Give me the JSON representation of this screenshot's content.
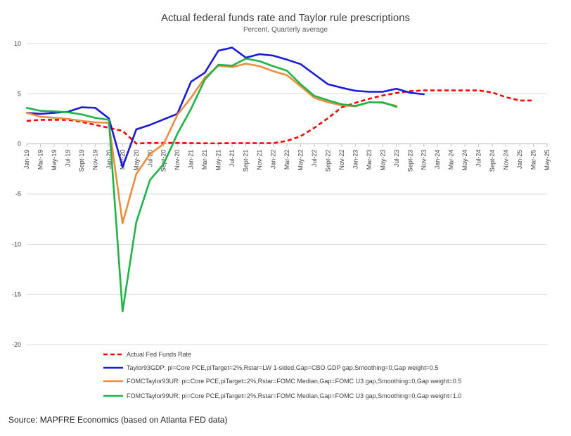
{
  "colors": {
    "actual": "#ff0000",
    "taylor93gdp": "#1a1ad9",
    "fomc_taylor93ur": "#f08c3c",
    "fomc_taylor99ur": "#1eb446",
    "grid": "#d9d9d9",
    "axis": "#bfbfbf"
  },
  "source": "Source: MAPFRE Economics (based on Atlanta FED data)",
  "chart_data": {
    "type": "line",
    "title": "Actual federal funds rate and Taylor rule prescriptions",
    "subtitle": "Percent, Quarterly average",
    "ylim": [
      -20,
      10
    ],
    "yticks": [
      "10",
      "5",
      "0",
      "-5",
      "-10",
      "-15",
      "-20"
    ],
    "ytick_values": [
      10,
      5,
      0,
      -5,
      -10,
      -15,
      -20
    ],
    "grid": true,
    "legend_position": "bottom",
    "x": [
      "Jan-19",
      "Mar-19",
      "May-19",
      "Jul-19",
      "Sept-19",
      "Nov-19",
      "Jan-20",
      "Mar-20",
      "May-20",
      "Jul-20",
      "Sept-20",
      "Nov-20",
      "Jan-21",
      "Mar-21",
      "May-21",
      "Jul-21",
      "Sept-21",
      "Nov-21",
      "Jan-22",
      "Mar-22",
      "May-22",
      "Jul-22",
      "Sept-22",
      "Nov-22",
      "Jan-23",
      "Mar-23",
      "May-23",
      "Jul-23",
      "Sept-23",
      "Nov-23",
      "Jan-24",
      "Mar-24",
      "May-24",
      "Jul-24",
      "Sept-24",
      "Nov-24",
      "Jan-25",
      "Mar-25",
      "May-25"
    ],
    "series": [
      {
        "key": "actual",
        "name": "Actual Fed Funds Rate",
        "style": "dashed",
        "points": [
          [
            0,
            2.3
          ],
          [
            1,
            2.4
          ],
          [
            2,
            2.4
          ],
          [
            3,
            2.4
          ],
          [
            4,
            2.2
          ],
          [
            5,
            1.9
          ],
          [
            6,
            1.6
          ],
          [
            7,
            1.3
          ],
          [
            8,
            0.05
          ],
          [
            9,
            0.1
          ],
          [
            10,
            0.1
          ],
          [
            11,
            0.1
          ],
          [
            12,
            0.08
          ],
          [
            13,
            0.07
          ],
          [
            14,
            0.06
          ],
          [
            15,
            0.08
          ],
          [
            16,
            0.08
          ],
          [
            17,
            0.08
          ],
          [
            18,
            0.08
          ],
          [
            19,
            0.3
          ],
          [
            20,
            0.77
          ],
          [
            21,
            1.6
          ],
          [
            22,
            2.56
          ],
          [
            23,
            3.65
          ],
          [
            24,
            4.1
          ],
          [
            25,
            4.5
          ],
          [
            26,
            4.83
          ],
          [
            27,
            5.08
          ],
          [
            28,
            5.26
          ],
          [
            29,
            5.33
          ],
          [
            30,
            5.33
          ],
          [
            31,
            5.33
          ],
          [
            32,
            5.33
          ],
          [
            33,
            5.33
          ],
          [
            34,
            5.13
          ],
          [
            35,
            4.65
          ],
          [
            36,
            4.33
          ],
          [
            37,
            4.33
          ]
        ]
      },
      {
        "key": "taylor93gdp",
        "name": "Taylor93GDP:  pi=Core PCE,piTarget=2%,Rstar=LW 1-sided,Gap=CBO GDP gap,Smoothing=0,Gap weight=0.5",
        "style": "solid",
        "points": [
          [
            0,
            3.1
          ],
          [
            1,
            3.0
          ],
          [
            3,
            3.2
          ],
          [
            4,
            3.65
          ],
          [
            5,
            3.6
          ],
          [
            6,
            2.55
          ],
          [
            7,
            -2.3
          ],
          [
            8,
            1.45
          ],
          [
            9,
            1.9
          ],
          [
            11,
            3.0
          ],
          [
            12,
            6.2
          ],
          [
            13,
            7.1
          ],
          [
            14,
            9.3
          ],
          [
            15,
            9.6
          ],
          [
            16,
            8.6
          ],
          [
            17,
            8.95
          ],
          [
            18,
            8.8
          ],
          [
            19,
            8.4
          ],
          [
            20,
            7.95
          ],
          [
            21,
            6.95
          ],
          [
            22,
            5.95
          ],
          [
            23,
            5.6
          ],
          [
            24,
            5.3
          ],
          [
            25,
            5.2
          ],
          [
            26,
            5.2
          ],
          [
            27,
            5.5
          ],
          [
            28,
            5.1
          ],
          [
            29,
            4.95
          ]
        ]
      },
      {
        "key": "fomc_taylor93ur",
        "name": "FOMCTaylor93UR:  pi=Core PCE,piTarget=2%,Rstar=FOMC Median,Gap=FOMC U3 gap,Smoothing=0,Gap weight=0.5",
        "style": "solid",
        "points": [
          [
            0,
            3.1
          ],
          [
            1,
            2.7
          ],
          [
            2,
            2.6
          ],
          [
            3,
            2.5
          ],
          [
            4,
            2.3
          ],
          [
            5,
            2.15
          ],
          [
            6,
            2.1
          ],
          [
            7,
            -7.9
          ],
          [
            8,
            -3.0
          ],
          [
            9,
            -1.0
          ],
          [
            10,
            0.0
          ],
          [
            11,
            2.9
          ],
          [
            12,
            4.6
          ],
          [
            13,
            6.6
          ],
          [
            14,
            7.8
          ],
          [
            15,
            7.65
          ],
          [
            16,
            8.0
          ],
          [
            17,
            7.75
          ],
          [
            18,
            7.25
          ],
          [
            19,
            6.85
          ],
          [
            20,
            5.75
          ],
          [
            21,
            4.6
          ],
          [
            22,
            4.15
          ],
          [
            23,
            3.85
          ],
          [
            24,
            3.75
          ],
          [
            25,
            4.15
          ],
          [
            26,
            4.1
          ],
          [
            27,
            3.8
          ]
        ]
      },
      {
        "key": "fomc_taylor99ur",
        "name": "FOMCTaylor99UR:  pi=Core PCE,piTarget=2%,Rstar=FOMC Median,Gap=FOMC U3 gap,Smoothing=0,Gap weight=1.0",
        "style": "solid",
        "points": [
          [
            0,
            3.6
          ],
          [
            1,
            3.3
          ],
          [
            2,
            3.25
          ],
          [
            3,
            3.15
          ],
          [
            4,
            2.95
          ],
          [
            5,
            2.6
          ],
          [
            6,
            2.4
          ],
          [
            7,
            -16.7
          ],
          [
            8,
            -7.8
          ],
          [
            9,
            -3.6
          ],
          [
            10,
            -2.0
          ],
          [
            11,
            1.0
          ],
          [
            12,
            3.5
          ],
          [
            13,
            6.4
          ],
          [
            14,
            7.9
          ],
          [
            15,
            7.8
          ],
          [
            16,
            8.5
          ],
          [
            17,
            8.25
          ],
          [
            18,
            7.75
          ],
          [
            19,
            7.3
          ],
          [
            20,
            5.95
          ],
          [
            21,
            4.8
          ],
          [
            22,
            4.35
          ],
          [
            23,
            3.95
          ],
          [
            24,
            3.8
          ],
          [
            25,
            4.15
          ],
          [
            26,
            4.15
          ],
          [
            27,
            3.7
          ]
        ]
      }
    ]
  }
}
